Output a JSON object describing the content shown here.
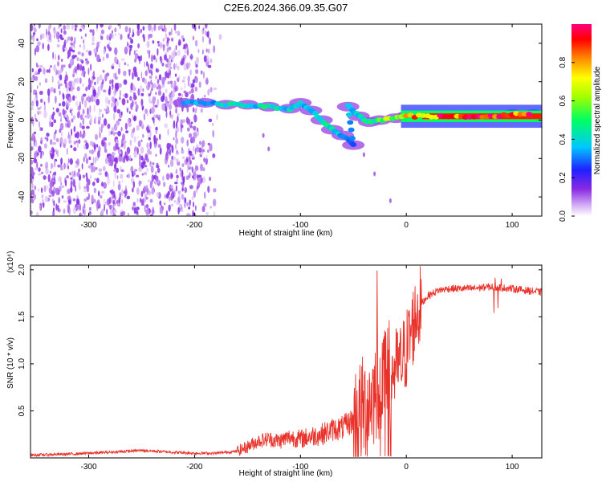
{
  "title": "C2E6.2024.366.09.35.G07",
  "chart_data": [
    {
      "type": "heatmap",
      "name": "spectrogram",
      "xlabel": "Height of straight line (km)",
      "ylabel": "Frequency (Hz)",
      "xlim": [
        -355,
        128
      ],
      "ylim": [
        -50,
        50
      ],
      "xticks": [
        -300,
        -200,
        -100,
        0,
        100
      ],
      "yticks": [
        -40,
        -20,
        0,
        20,
        40
      ],
      "colorbar": {
        "label": "Normalized spectral amplitude",
        "range": [
          0,
          1
        ],
        "ticks": [
          "0.0",
          "0.2",
          "0.4",
          "0.6",
          "0.8"
        ],
        "colormap": "rainbow: white-lavender-purple-blue-cyan-green-yellow-orange-red-magenta"
      },
      "noise_region_x": [
        -355,
        -175
      ],
      "ridge": [
        {
          "x": -210,
          "freq": 9,
          "amp": 0.35
        },
        {
          "x": -190,
          "freq": 9,
          "amp": 0.3
        },
        {
          "x": -170,
          "freq": 8,
          "amp": 0.4
        },
        {
          "x": -150,
          "freq": 8,
          "amp": 0.35
        },
        {
          "x": -130,
          "freq": 7,
          "amp": 0.45
        },
        {
          "x": -110,
          "freq": 6,
          "amp": 0.4
        },
        {
          "x": -100,
          "freq": 9,
          "amp": 0.35
        },
        {
          "x": -90,
          "freq": 5,
          "amp": 0.4
        },
        {
          "x": -80,
          "freq": 0,
          "amp": 0.45
        },
        {
          "x": -70,
          "freq": -5,
          "amp": 0.4
        },
        {
          "x": -60,
          "freq": -8,
          "amp": 0.35
        },
        {
          "x": -50,
          "freq": -13,
          "amp": 0.3
        },
        {
          "x": -55,
          "freq": 7,
          "amp": 0.35
        },
        {
          "x": -45,
          "freq": 2,
          "amp": 0.4
        },
        {
          "x": -35,
          "freq": -1,
          "amp": 0.45
        },
        {
          "x": -25,
          "freq": 0,
          "amp": 0.55
        },
        {
          "x": -10,
          "freq": 1,
          "amp": 0.6
        },
        {
          "x": 0,
          "freq": 2,
          "amp": 0.7
        },
        {
          "x": 20,
          "freq": 2,
          "amp": 0.85
        },
        {
          "x": 40,
          "freq": 2,
          "amp": 0.9
        },
        {
          "x": 60,
          "freq": 2,
          "amp": 0.95
        },
        {
          "x": 80,
          "freq": 2,
          "amp": 0.9
        },
        {
          "x": 100,
          "freq": 3,
          "amp": 0.92
        },
        {
          "x": 120,
          "freq": 3,
          "amp": 0.95
        }
      ]
    },
    {
      "type": "line",
      "name": "snr",
      "xlabel": "Height of straight line (km)",
      "ylabel": "SNR (10 * v/v)",
      "y_multiplier": "(x10⁴)",
      "xlim": [
        -355,
        128
      ],
      "ylim": [
        0,
        2.05
      ],
      "xticks": [
        -300,
        -200,
        -100,
        0,
        100
      ],
      "yticks": [
        "0.5",
        "1.0",
        "1.5",
        "2.0"
      ],
      "ytick_values": [
        0.5,
        1.0,
        1.5,
        2.0
      ],
      "color": "#e8322a",
      "x": [
        -355,
        -320,
        -280,
        -250,
        -220,
        -200,
        -180,
        -160,
        -150,
        -140,
        -130,
        -120,
        -110,
        -100,
        -90,
        -80,
        -70,
        -60,
        -50,
        -45,
        -40,
        -35,
        -30,
        -25,
        -22,
        -20,
        -15,
        -10,
        -5,
        0,
        5,
        10,
        15,
        20,
        25,
        30,
        40,
        60,
        80,
        100,
        128
      ],
      "y": [
        0.03,
        0.04,
        0.06,
        0.08,
        0.06,
        0.05,
        0.05,
        0.07,
        0.12,
        0.18,
        0.2,
        0.18,
        0.22,
        0.2,
        0.23,
        0.25,
        0.3,
        0.32,
        0.4,
        0.45,
        0.52,
        0.6,
        0.7,
        0.8,
        0.9,
        0.85,
        0.9,
        0.95,
        1.0,
        1.15,
        1.35,
        1.55,
        1.65,
        1.72,
        1.75,
        1.78,
        1.8,
        1.8,
        1.82,
        1.8,
        1.76
      ]
    }
  ]
}
